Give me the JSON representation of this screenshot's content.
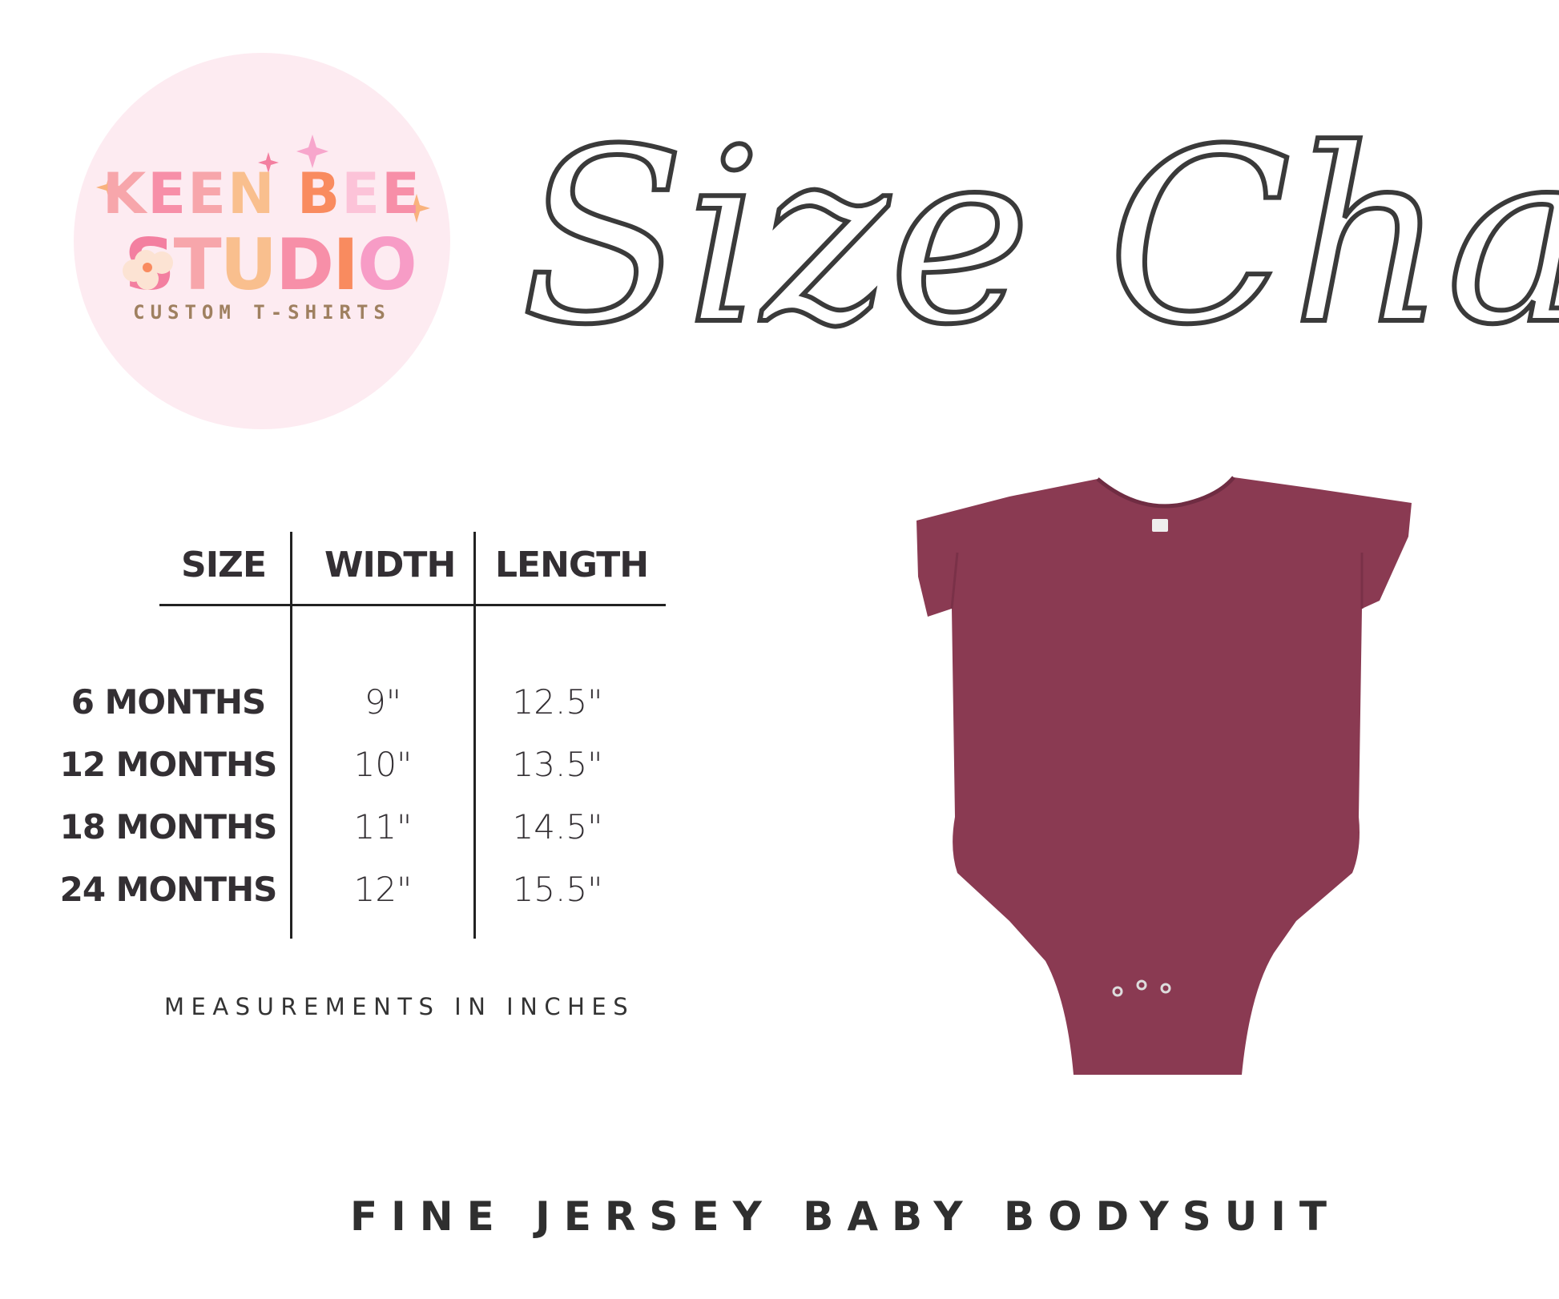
{
  "logo": {
    "line1": "KEEN BEE",
    "line2": "STUDIO",
    "tagline": "CUSTOM T-SHIRTS",
    "colors": [
      "#f7a6ab",
      "#f78fa8",
      "#f9bf8e",
      "#f98b5f",
      "#fcc3d8",
      "#9f8060"
    ]
  },
  "title": "Size Chart",
  "table": {
    "headers": [
      "SIZE",
      "WIDTH",
      "LENGTH"
    ],
    "rows": [
      {
        "size": "6 MONTHS",
        "width": "9\"",
        "length": "12.5\""
      },
      {
        "size": "12 MONTHS",
        "width": "10\"",
        "length": "13.5\""
      },
      {
        "size": "18 MONTHS",
        "width": "11\"",
        "length": "14.5\""
      },
      {
        "size": "24 MONTHS",
        "width": "12\"",
        "length": "15.5\""
      }
    ]
  },
  "note": "MEASUREMENTS IN INCHES",
  "product": {
    "name": "FINE JERSEY BABY BODYSUIT",
    "garment_color": "#8a3a52"
  }
}
